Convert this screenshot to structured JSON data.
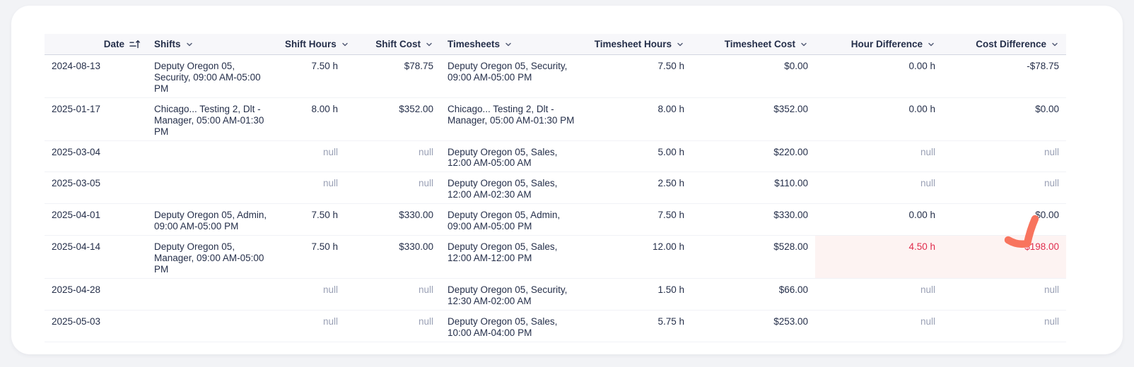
{
  "colors": {
    "text": "#252f4a",
    "muted_null": "#9aa0b5",
    "danger_text": "#e02d4d",
    "danger_highlight_bg": "#fdf3f2",
    "header_bg": "#f7f7fa",
    "annotation": "#f8745e"
  },
  "table": {
    "columns": [
      {
        "key": "date",
        "label": "Date",
        "icon": "sort-ascending-icon"
      },
      {
        "key": "shifts",
        "label": "Shifts",
        "icon": "chevron-down-icon"
      },
      {
        "key": "shift_hours",
        "label": "Shift Hours",
        "icon": "chevron-down-icon"
      },
      {
        "key": "shift_cost",
        "label": "Shift Cost",
        "icon": "chevron-down-icon"
      },
      {
        "key": "timesheets",
        "label": "Timesheets",
        "icon": "chevron-down-icon"
      },
      {
        "key": "timesheet_hours",
        "label": "Timesheet Hours",
        "icon": "chevron-down-icon"
      },
      {
        "key": "timesheet_cost",
        "label": "Timesheet Cost",
        "icon": "chevron-down-icon"
      },
      {
        "key": "hour_difference",
        "label": "Hour Difference",
        "icon": "chevron-down-icon"
      },
      {
        "key": "cost_difference",
        "label": "Cost Difference",
        "icon": "chevron-down-icon"
      }
    ],
    "rows": [
      {
        "date": "2024-08-13",
        "shifts": "Deputy Oregon 05, Security, 09:00 AM-05:00 PM",
        "shift_hours": "7.50 h",
        "shift_cost": "$78.75",
        "timesheets": "Deputy Oregon 05, Security, 09:00 AM-05:00 PM",
        "timesheet_hours": "7.50 h",
        "timesheet_cost": "$0.00",
        "hour_difference": "0.00 h",
        "cost_difference": "-$78.75"
      },
      {
        "date": "2025-01-17",
        "shifts": "Chicago... Testing 2, Dlt - Manager, 05:00 AM-01:30 PM",
        "shift_hours": "8.00 h",
        "shift_cost": "$352.00",
        "timesheets": "Chicago... Testing 2, Dlt - Manager, 05:00 AM-01:30 PM",
        "timesheet_hours": "8.00 h",
        "timesheet_cost": "$352.00",
        "hour_difference": "0.00 h",
        "cost_difference": "$0.00"
      },
      {
        "date": "2025-03-04",
        "shifts": "",
        "shift_hours": "null",
        "shift_cost": "null",
        "timesheets": "Deputy Oregon 05, Sales, 12:00 AM-05:00 AM",
        "timesheet_hours": "5.00 h",
        "timesheet_cost": "$220.00",
        "hour_difference": "null",
        "cost_difference": "null"
      },
      {
        "date": "2025-03-05",
        "shifts": "",
        "shift_hours": "null",
        "shift_cost": "null",
        "timesheets": "Deputy Oregon 05, Sales, 12:00 AM-02:30 AM",
        "timesheet_hours": "2.50 h",
        "timesheet_cost": "$110.00",
        "hour_difference": "null",
        "cost_difference": "null"
      },
      {
        "date": "2025-04-01",
        "shifts": "Deputy Oregon 05, Admin, 09:00 AM-05:00 PM",
        "shift_hours": "7.50 h",
        "shift_cost": "$330.00",
        "timesheets": "Deputy Oregon 05, Admin, 09:00 AM-05:00 PM",
        "timesheet_hours": "7.50 h",
        "timesheet_cost": "$330.00",
        "hour_difference": "0.00 h",
        "cost_difference": "$0.00"
      },
      {
        "date": "2025-04-14",
        "shifts": "Deputy Oregon 05, Manager, 09:00 AM-05:00 PM",
        "shift_hours": "7.50 h",
        "shift_cost": "$330.00",
        "timesheets": "Deputy Oregon 05, Sales, 12:00 AM-12:00 PM",
        "timesheet_hours": "12.00 h",
        "timesheet_cost": "$528.00",
        "hour_difference": "4.50 h",
        "cost_difference": "$198.00",
        "alert_columns": [
          "hour_difference",
          "cost_difference"
        ]
      },
      {
        "date": "2025-04-28",
        "shifts": "",
        "shift_hours": "null",
        "shift_cost": "null",
        "timesheets": "Deputy Oregon 05, Security, 12:30 AM-02:00 AM",
        "timesheet_hours": "1.50 h",
        "timesheet_cost": "$66.00",
        "hour_difference": "null",
        "cost_difference": "null"
      },
      {
        "date": "2025-05-03",
        "shifts": "",
        "shift_hours": "null",
        "shift_cost": "null",
        "timesheets": "Deputy Oregon 05, Sales, 10:00 AM-04:00 PM",
        "timesheet_hours": "5.75 h",
        "timesheet_cost": "$253.00",
        "hour_difference": "null",
        "cost_difference": "null"
      }
    ]
  },
  "annotation": {
    "shape": "hand-drawn-check",
    "color": "#f8745e"
  }
}
